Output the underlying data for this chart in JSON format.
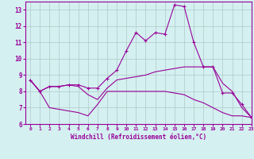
{
  "xlabel": "Windchill (Refroidissement éolien,°C)",
  "x": [
    0,
    1,
    2,
    3,
    4,
    5,
    6,
    7,
    8,
    9,
    10,
    11,
    12,
    13,
    14,
    15,
    16,
    17,
    18,
    19,
    20,
    21,
    22,
    23
  ],
  "line1": [
    8.7,
    8.0,
    8.3,
    8.3,
    8.4,
    8.4,
    8.2,
    8.2,
    8.8,
    9.3,
    10.5,
    11.6,
    11.1,
    11.6,
    11.5,
    13.3,
    13.2,
    11.0,
    9.5,
    9.5,
    7.9,
    7.9,
    7.2,
    6.4
  ],
  "line2": [
    8.7,
    8.0,
    8.3,
    8.3,
    8.4,
    8.3,
    7.8,
    7.5,
    8.2,
    8.7,
    8.8,
    8.9,
    9.0,
    9.2,
    9.3,
    9.4,
    9.5,
    9.5,
    9.5,
    9.5,
    8.5,
    8.0,
    7.0,
    6.4
  ],
  "line3": [
    8.7,
    8.0,
    7.0,
    6.9,
    6.8,
    6.7,
    6.5,
    7.2,
    8.0,
    8.0,
    8.0,
    8.0,
    8.0,
    8.0,
    8.0,
    7.9,
    7.8,
    7.5,
    7.3,
    7.0,
    6.7,
    6.5,
    6.5,
    6.4
  ],
  "line_color": "#990099",
  "bg_color": "#d4f0f0",
  "grid_color": "#b0c8c8",
  "ylim": [
    6,
    13.5
  ],
  "xlim": [
    -0.5,
    23
  ],
  "yticks": [
    6,
    7,
    8,
    9,
    10,
    11,
    12,
    13
  ],
  "xticks": [
    0,
    1,
    2,
    3,
    4,
    5,
    6,
    7,
    8,
    9,
    10,
    11,
    12,
    13,
    14,
    15,
    16,
    17,
    18,
    19,
    20,
    21,
    22,
    23
  ]
}
